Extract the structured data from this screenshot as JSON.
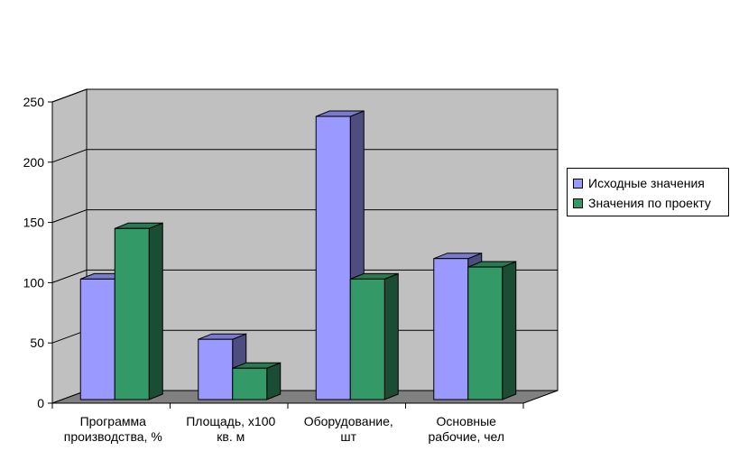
{
  "chart_data": {
    "type": "bar",
    "categories": [
      [
        "Программа",
        "производства, %"
      ],
      [
        "Площадь, х100",
        "кв. м"
      ],
      [
        "Оборудование,",
        "шт"
      ],
      [
        "Основные",
        "рабочие, чел"
      ]
    ],
    "series": [
      {
        "name": "Исходные значения",
        "values": [
          100,
          50,
          235,
          117
        ],
        "color": "#9999ff",
        "side_color": "#4d4d80",
        "top_color": "#7a7acc"
      },
      {
        "name": "Значения по проекту",
        "values": [
          142,
          26,
          100,
          110
        ],
        "color": "#339966",
        "side_color": "#1a4d33",
        "top_color": "#297a52"
      }
    ],
    "y_ticks": [
      "0",
      "50",
      "100",
      "150",
      "200",
      "250"
    ],
    "ylim": [
      0,
      250
    ],
    "grid": true,
    "legend_position": "right",
    "wall_color": "#c0c0c0",
    "floor_color": "#808080"
  }
}
